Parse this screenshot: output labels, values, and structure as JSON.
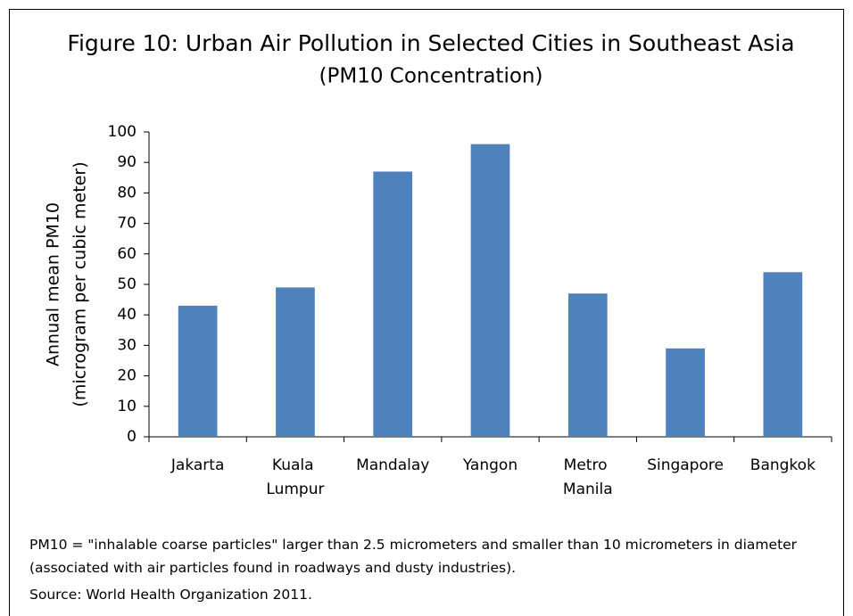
{
  "chart_data": {
    "type": "bar",
    "title": "Figure 10: Urban Air Pollution in Selected Cities in Southeast Asia",
    "subtitle": "(PM10 Concentration)",
    "y_label": [
      "Annual mean PM10",
      "(microgram per cubic meter)"
    ],
    "categories": [
      "Jakarta",
      "Kuala Lumpur",
      "Mandalay",
      "Yangon",
      "Metro Manila",
      "Singapore",
      "Bangkok"
    ],
    "values": [
      43,
      49,
      87,
      96,
      47,
      29,
      54
    ],
    "color": "#4f81bd",
    "ylim": [
      0,
      100
    ],
    "yticks": [
      0,
      10,
      20,
      30,
      40,
      50,
      60,
      70,
      80,
      90,
      100
    ],
    "grid": false,
    "note": "PM10 = \"inhalable coarse particles\" larger than 2.5 micrometers and smaller than 10 micrometers in diameter (associated with air particles found in roadways and dusty industries).",
    "source": "Source: World Health Organization 2011."
  }
}
